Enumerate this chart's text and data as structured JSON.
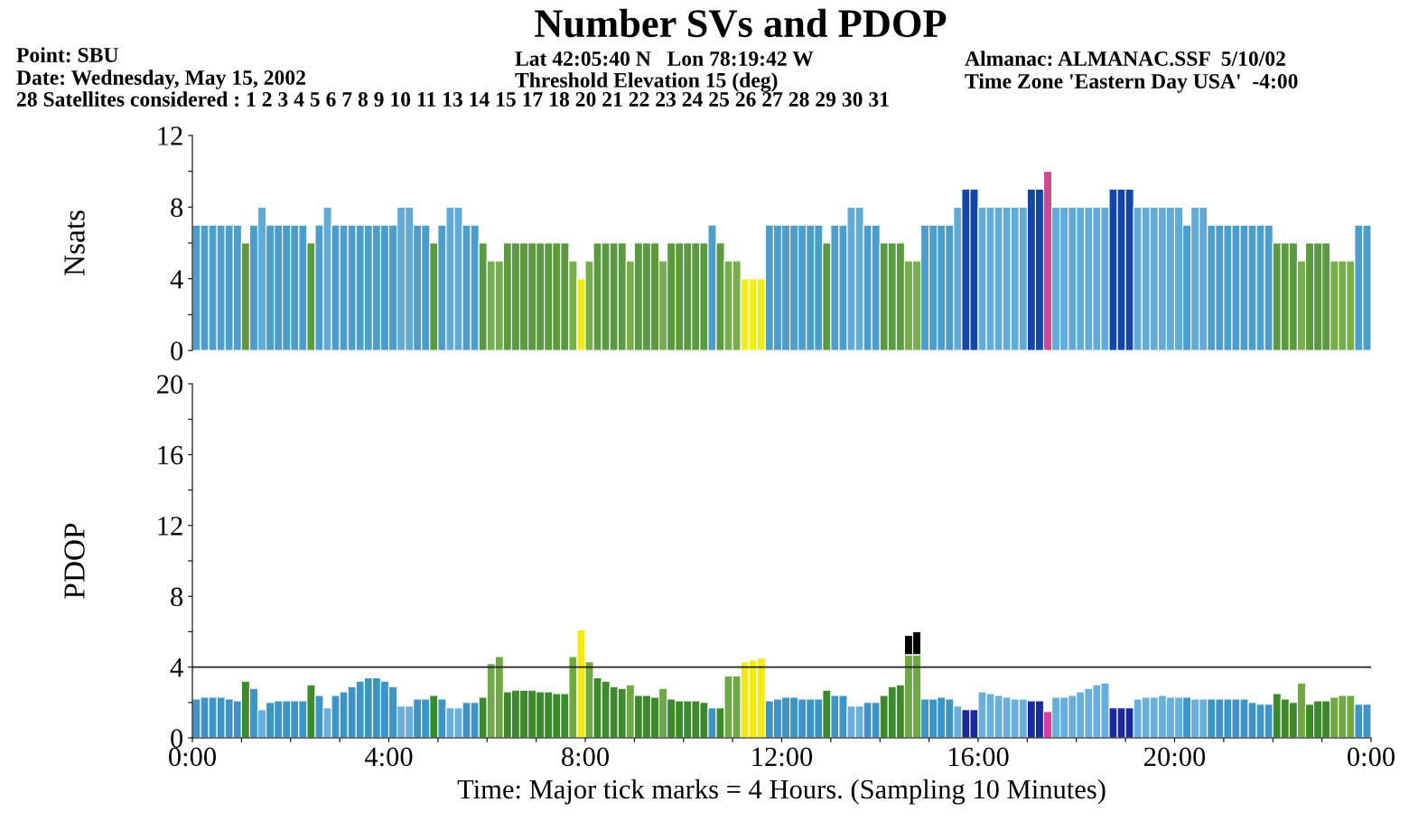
{
  "chart_data": [
    {
      "type": "bar",
      "title": "Number SVs and PDOP",
      "ylabel": "Nsats",
      "annotations": [
        "Point: SBU",
        "Date: Wednesday, May 15, 2002",
        "28 Satellites considered : 1 2 3 4 5 6 7 8 9 10 11 13 14 15 17 18 20 21 22 23 24 25 26 27 28 29 30 31",
        "Lat 42:05:40 N   Lon 78:19:42 W",
        "Threshold Elevation 15 (deg)",
        "Almanac: ALMANAC.SSF  5/10/02",
        "Time Zone 'Eastern Day USA'  -4:00"
      ],
      "x": [
        "2002-05-15T00:00",
        "2002-05-15T00:10",
        "2002-05-15T00:20",
        "2002-05-15T00:30",
        "2002-05-15T00:40",
        "2002-05-15T00:50",
        "2002-05-15T01:00",
        "2002-05-15T01:10",
        "2002-05-15T01:20",
        "2002-05-15T01:30",
        "2002-05-15T01:40",
        "2002-05-15T01:50",
        "2002-05-15T02:00",
        "2002-05-15T02:10",
        "2002-05-15T02:20",
        "2002-05-15T02:30",
        "2002-05-15T02:40",
        "2002-05-15T02:50",
        "2002-05-15T03:00",
        "2002-05-15T03:10",
        "2002-05-15T03:20",
        "2002-05-15T03:30",
        "2002-05-15T03:40",
        "2002-05-15T03:50",
        "2002-05-15T04:00",
        "2002-05-15T04:10",
        "2002-05-15T04:20",
        "2002-05-15T04:30",
        "2002-05-15T04:40",
        "2002-05-15T04:50",
        "2002-05-15T05:00",
        "2002-05-15T05:10",
        "2002-05-15T05:20",
        "2002-05-15T05:30",
        "2002-05-15T05:40",
        "2002-05-15T05:50",
        "2002-05-15T06:00",
        "2002-05-15T06:10",
        "2002-05-15T06:20",
        "2002-05-15T06:30",
        "2002-05-15T06:40",
        "2002-05-15T06:50",
        "2002-05-15T07:00",
        "2002-05-15T07:10",
        "2002-05-15T07:20",
        "2002-05-15T07:30",
        "2002-05-15T07:40",
        "2002-05-15T07:50",
        "2002-05-15T08:00",
        "2002-05-15T08:10",
        "2002-05-15T08:20",
        "2002-05-15T08:30",
        "2002-05-15T08:40",
        "2002-05-15T08:50",
        "2002-05-15T09:00",
        "2002-05-15T09:10",
        "2002-05-15T09:20",
        "2002-05-15T09:30",
        "2002-05-15T09:40",
        "2002-05-15T09:50",
        "2002-05-15T10:00",
        "2002-05-15T10:10",
        "2002-05-15T10:20",
        "2002-05-15T10:30",
        "2002-05-15T10:40",
        "2002-05-15T10:50",
        "2002-05-15T11:00",
        "2002-05-15T11:10",
        "2002-05-15T11:20",
        "2002-05-15T11:30",
        "2002-05-15T11:40",
        "2002-05-15T11:50",
        "2002-05-15T12:00",
        "2002-05-15T12:10",
        "2002-05-15T12:20",
        "2002-05-15T12:30",
        "2002-05-15T12:40",
        "2002-05-15T12:50",
        "2002-05-15T13:00",
        "2002-05-15T13:10",
        "2002-05-15T13:20",
        "2002-05-15T13:30",
        "2002-05-15T13:40",
        "2002-05-15T13:50",
        "2002-05-15T14:00",
        "2002-05-15T14:10",
        "2002-05-15T14:20",
        "2002-05-15T14:30",
        "2002-05-15T14:40",
        "2002-05-15T14:50",
        "2002-05-15T15:00",
        "2002-05-15T15:10",
        "2002-05-15T15:20",
        "2002-05-15T15:30",
        "2002-05-15T15:40",
        "2002-05-15T15:50",
        "2002-05-15T16:00",
        "2002-05-15T16:10",
        "2002-05-15T16:20",
        "2002-05-15T16:30",
        "2002-05-15T16:40",
        "2002-05-15T16:50",
        "2002-05-15T17:00",
        "2002-05-15T17:10",
        "2002-05-15T17:20",
        "2002-05-15T17:30",
        "2002-05-15T17:40",
        "2002-05-15T17:50",
        "2002-05-15T18:00",
        "2002-05-15T18:10",
        "2002-05-15T18:20",
        "2002-05-15T18:30",
        "2002-05-15T18:40",
        "2002-05-15T18:50",
        "2002-05-15T19:00",
        "2002-05-15T19:10",
        "2002-05-15T19:20",
        "2002-05-15T19:30",
        "2002-05-15T19:40",
        "2002-05-15T19:50",
        "2002-05-15T20:00",
        "2002-05-15T20:10",
        "2002-05-15T20:20",
        "2002-05-15T20:30",
        "2002-05-15T20:40",
        "2002-05-15T20:50",
        "2002-05-15T21:00",
        "2002-05-15T21:10",
        "2002-05-15T21:20",
        "2002-05-15T21:30",
        "2002-05-15T21:40",
        "2002-05-15T21:50",
        "2002-05-15T22:00",
        "2002-05-15T22:10",
        "2002-05-15T22:20",
        "2002-05-15T22:30",
        "2002-05-15T22:40",
        "2002-05-15T22:50",
        "2002-05-15T23:00",
        "2002-05-15T23:10",
        "2002-05-15T23:20",
        "2002-05-15T23:30",
        "2002-05-15T23:40",
        "2002-05-15T23:50"
      ],
      "values": [
        7,
        7,
        7,
        7,
        7,
        7,
        6,
        7,
        8,
        7,
        7,
        7,
        7,
        7,
        6,
        7,
        8,
        7,
        7,
        7,
        7,
        7,
        7,
        7,
        7,
        8,
        8,
        7,
        7,
        6,
        7,
        8,
        8,
        7,
        7,
        6,
        5,
        5,
        6,
        6,
        6,
        6,
        6,
        6,
        6,
        6,
        5,
        4,
        5,
        6,
        6,
        6,
        6,
        5,
        6,
        6,
        6,
        5,
        6,
        6,
        6,
        6,
        6,
        7,
        6,
        5,
        5,
        4,
        4,
        4,
        7,
        7,
        7,
        7,
        7,
        7,
        7,
        6,
        7,
        7,
        8,
        8,
        7,
        7,
        6,
        6,
        6,
        5,
        5,
        7,
        7,
        7,
        7,
        8,
        9,
        9,
        8,
        8,
        8,
        8,
        8,
        8,
        9,
        9,
        10,
        8,
        8,
        8,
        8,
        8,
        8,
        8,
        9,
        9,
        9,
        8,
        8,
        8,
        8,
        8,
        8,
        7,
        8,
        8,
        7,
        7,
        7,
        7,
        7,
        7,
        7,
        7,
        6,
        6,
        6,
        5,
        6,
        6,
        6,
        5,
        5,
        5,
        7,
        7
      ],
      "colors": [
        "#4d9dcb",
        "#4d9dcb",
        "#4d9dcb",
        "#4d9dcb",
        "#4d9dcb",
        "#4d9dcb",
        "#5b9a40",
        "#4d9dcb",
        "#62abd6",
        "#4d9dcb",
        "#4d9dcb",
        "#4d9dcb",
        "#4d9dcb",
        "#4d9dcb",
        "#5b9a40",
        "#4d9dcb",
        "#62abd6",
        "#4d9dcb",
        "#4d9dcb",
        "#4d9dcb",
        "#4d9dcb",
        "#4d9dcb",
        "#4d9dcb",
        "#4d9dcb",
        "#4d9dcb",
        "#62abd6",
        "#62abd6",
        "#4d9dcb",
        "#4d9dcb",
        "#5b9a40",
        "#4d9dcb",
        "#62abd6",
        "#62abd6",
        "#4d9dcb",
        "#4d9dcb",
        "#5b9a40",
        "#78ad4c",
        "#78ad4c",
        "#5b9a40",
        "#5b9a40",
        "#5b9a40",
        "#5b9a40",
        "#5b9a40",
        "#5b9a40",
        "#5b9a40",
        "#5b9a40",
        "#78ad4c",
        "#f2ec1a",
        "#78ad4c",
        "#5b9a40",
        "#5b9a40",
        "#5b9a40",
        "#5b9a40",
        "#78ad4c",
        "#5b9a40",
        "#5b9a40",
        "#5b9a40",
        "#78ad4c",
        "#5b9a40",
        "#5b9a40",
        "#5b9a40",
        "#5b9a40",
        "#5b9a40",
        "#4d9dcb",
        "#5b9a40",
        "#78ad4c",
        "#78ad4c",
        "#f2ec1a",
        "#f2ec1a",
        "#f2ec1a",
        "#4d9dcb",
        "#4d9dcb",
        "#4d9dcb",
        "#4d9dcb",
        "#4d9dcb",
        "#4d9dcb",
        "#4d9dcb",
        "#5b9a40",
        "#4d9dcb",
        "#4d9dcb",
        "#62abd6",
        "#62abd6",
        "#4d9dcb",
        "#4d9dcb",
        "#5b9a40",
        "#5b9a40",
        "#5b9a40",
        "#78ad4c",
        "#78ad4c",
        "#4d9dcb",
        "#4d9dcb",
        "#4d9dcb",
        "#4d9dcb",
        "#62abd6",
        "#1446aa",
        "#1446aa",
        "#62abd6",
        "#62abd6",
        "#62abd6",
        "#62abd6",
        "#62abd6",
        "#62abd6",
        "#1446aa",
        "#1446aa",
        "#cc4a8e",
        "#62abd6",
        "#62abd6",
        "#62abd6",
        "#62abd6",
        "#62abd6",
        "#62abd6",
        "#62abd6",
        "#1446aa",
        "#1446aa",
        "#1446aa",
        "#62abd6",
        "#62abd6",
        "#62abd6",
        "#62abd6",
        "#62abd6",
        "#62abd6",
        "#4d9dcb",
        "#62abd6",
        "#62abd6",
        "#4d9dcb",
        "#4d9dcb",
        "#4d9dcb",
        "#4d9dcb",
        "#4d9dcb",
        "#4d9dcb",
        "#4d9dcb",
        "#4d9dcb",
        "#5b9a40",
        "#5b9a40",
        "#5b9a40",
        "#78ad4c",
        "#5b9a40",
        "#5b9a40",
        "#5b9a40",
        "#78ad4c",
        "#78ad4c",
        "#78ad4c",
        "#4d9dcb",
        "#4d9dcb"
      ],
      "xlim": [
        "2002-05-15T00:00",
        "2002-05-16T00:00"
      ],
      "ylim": [
        0,
        12
      ],
      "yticks": [
        0,
        {
          "value": 2,
          "label": null
        },
        4,
        {
          "value": 6,
          "label": null
        },
        8,
        {
          "value": 10,
          "label": null
        },
        12
      ],
      "tick_labels": "y",
      "grid": false,
      "legend": false
    },
    {
      "type": "bar",
      "ylabel": "PDOP",
      "xlabel": "Time: Major tick marks = 4 Hours. (Sampling 10 Minutes)",
      "stacked": true,
      "x": [
        "2002-05-15T00:00",
        "2002-05-15T00:10",
        "2002-05-15T00:20",
        "2002-05-15T00:30",
        "2002-05-15T00:40",
        "2002-05-15T00:50",
        "2002-05-15T01:00",
        "2002-05-15T01:10",
        "2002-05-15T01:20",
        "2002-05-15T01:30",
        "2002-05-15T01:40",
        "2002-05-15T01:50",
        "2002-05-15T02:00",
        "2002-05-15T02:10",
        "2002-05-15T02:20",
        "2002-05-15T02:30",
        "2002-05-15T02:40",
        "2002-05-15T02:50",
        "2002-05-15T03:00",
        "2002-05-15T03:10",
        "2002-05-15T03:20",
        "2002-05-15T03:30",
        "2002-05-15T03:40",
        "2002-05-15T03:50",
        "2002-05-15T04:00",
        "2002-05-15T04:10",
        "2002-05-15T04:20",
        "2002-05-15T04:30",
        "2002-05-15T04:40",
        "2002-05-15T04:50",
        "2002-05-15T05:00",
        "2002-05-15T05:10",
        "2002-05-15T05:20",
        "2002-05-15T05:30",
        "2002-05-15T05:40",
        "2002-05-15T05:50",
        "2002-05-15T06:00",
        "2002-05-15T06:10",
        "2002-05-15T06:20",
        "2002-05-15T06:30",
        "2002-05-15T06:40",
        "2002-05-15T06:50",
        "2002-05-15T07:00",
        "2002-05-15T07:10",
        "2002-05-15T07:20",
        "2002-05-15T07:30",
        "2002-05-15T07:40",
        "2002-05-15T07:50",
        "2002-05-15T08:00",
        "2002-05-15T08:10",
        "2002-05-15T08:20",
        "2002-05-15T08:30",
        "2002-05-15T08:40",
        "2002-05-15T08:50",
        "2002-05-15T09:00",
        "2002-05-15T09:10",
        "2002-05-15T09:20",
        "2002-05-15T09:30",
        "2002-05-15T09:40",
        "2002-05-15T09:50",
        "2002-05-15T10:00",
        "2002-05-15T10:10",
        "2002-05-15T10:20",
        "2002-05-15T10:30",
        "2002-05-15T10:40",
        "2002-05-15T10:50",
        "2002-05-15T11:00",
        "2002-05-15T11:10",
        "2002-05-15T11:20",
        "2002-05-15T11:30",
        "2002-05-15T11:40",
        "2002-05-15T11:50",
        "2002-05-15T12:00",
        "2002-05-15T12:10",
        "2002-05-15T12:20",
        "2002-05-15T12:30",
        "2002-05-15T12:40",
        "2002-05-15T12:50",
        "2002-05-15T13:00",
        "2002-05-15T13:10",
        "2002-05-15T13:20",
        "2002-05-15T13:30",
        "2002-05-15T13:40",
        "2002-05-15T13:50",
        "2002-05-15T14:00",
        "2002-05-15T14:10",
        "2002-05-15T14:20",
        "2002-05-15T14:30",
        "2002-05-15T14:40",
        "2002-05-15T14:50",
        "2002-05-15T15:00",
        "2002-05-15T15:10",
        "2002-05-15T15:20",
        "2002-05-15T15:30",
        "2002-05-15T15:40",
        "2002-05-15T15:50",
        "2002-05-15T16:00",
        "2002-05-15T16:10",
        "2002-05-15T16:20",
        "2002-05-15T16:30",
        "2002-05-15T16:40",
        "2002-05-15T16:50",
        "2002-05-15T17:00",
        "2002-05-15T17:10",
        "2002-05-15T17:20",
        "2002-05-15T17:30",
        "2002-05-15T17:40",
        "2002-05-15T17:50",
        "2002-05-15T18:00",
        "2002-05-15T18:10",
        "2002-05-15T18:20",
        "2002-05-15T18:30",
        "2002-05-15T18:40",
        "2002-05-15T18:50",
        "2002-05-15T19:00",
        "2002-05-15T19:10",
        "2002-05-15T19:20",
        "2002-05-15T19:30",
        "2002-05-15T19:40",
        "2002-05-15T19:50",
        "2002-05-15T20:00",
        "2002-05-15T20:10",
        "2002-05-15T20:20",
        "2002-05-15T20:30",
        "2002-05-15T20:40",
        "2002-05-15T20:50",
        "2002-05-15T21:00",
        "2002-05-15T21:10",
        "2002-05-15T21:20",
        "2002-05-15T21:30",
        "2002-05-15T21:40",
        "2002-05-15T21:50",
        "2002-05-15T22:00",
        "2002-05-15T22:10",
        "2002-05-15T22:20",
        "2002-05-15T22:30",
        "2002-05-15T22:40",
        "2002-05-15T22:50",
        "2002-05-15T23:00",
        "2002-05-15T23:10",
        "2002-05-15T23:20",
        "2002-05-15T23:30",
        "2002-05-15T23:40",
        "2002-05-15T23:50"
      ],
      "series": [
        {
          "values": [
            2.2,
            2.3,
            2.3,
            2.3,
            2.2,
            2.1,
            3.2,
            2.8,
            1.6,
            2.0,
            2.1,
            2.1,
            2.1,
            2.1,
            3.0,
            2.4,
            1.7,
            2.4,
            2.6,
            2.9,
            3.2,
            3.4,
            3.4,
            3.2,
            2.9,
            1.8,
            1.8,
            2.2,
            2.2,
            2.4,
            2.2,
            1.7,
            1.7,
            2.0,
            2.0,
            2.3,
            4.2,
            4.6,
            2.6,
            2.7,
            2.7,
            2.7,
            2.6,
            2.6,
            2.5,
            2.5,
            4.6,
            6.1,
            4.3,
            3.4,
            3.2,
            2.9,
            2.8,
            3.0,
            2.4,
            2.4,
            2.3,
            2.8,
            2.2,
            2.1,
            2.1,
            2.1,
            2.0,
            1.7,
            1.7,
            3.5,
            3.5,
            4.3,
            4.4,
            4.5,
            2.1,
            2.2,
            2.3,
            2.3,
            2.2,
            2.2,
            2.2,
            2.7,
            2.4,
            2.4,
            1.8,
            1.8,
            2.0,
            2.0,
            2.4,
            2.9,
            3.0,
            4.7,
            4.7,
            2.2,
            2.2,
            2.3,
            2.2,
            1.8,
            1.6,
            1.6,
            2.6,
            2.5,
            2.4,
            2.3,
            2.2,
            2.2,
            2.1,
            2.1,
            1.5,
            2.3,
            2.3,
            2.4,
            2.6,
            2.8,
            3.0,
            3.1,
            1.7,
            1.7,
            1.7,
            2.2,
            2.3,
            2.3,
            2.4,
            2.3,
            2.3,
            2.3,
            2.2,
            2.2,
            2.2,
            2.2,
            2.2,
            2.2,
            2.2,
            2.0,
            1.9,
            1.9,
            2.5,
            2.2,
            2.0,
            3.1,
            1.9,
            2.1,
            2.1,
            2.3,
            2.4,
            2.4,
            1.9,
            1.9
          ],
          "colors": [
            "#3f94c6",
            "#3f94c6",
            "#3f94c6",
            "#3f94c6",
            "#3f94c6",
            "#3f94c6",
            "#3d8a2c",
            "#3f94c6",
            "#6aaedb",
            "#3f94c6",
            "#3f94c6",
            "#3f94c6",
            "#3f94c6",
            "#3f94c6",
            "#3d8a2c",
            "#3f94c6",
            "#6aaedb",
            "#3f94c6",
            "#3f94c6",
            "#3f94c6",
            "#3f94c6",
            "#3f94c6",
            "#3f94c6",
            "#3f94c6",
            "#3f94c6",
            "#6aaedb",
            "#6aaedb",
            "#3f94c6",
            "#3f94c6",
            "#3d8a2c",
            "#3f94c6",
            "#6aaedb",
            "#6aaedb",
            "#3f94c6",
            "#3f94c6",
            "#3d8a2c",
            "#6fa844",
            "#6fa844",
            "#3d8a2c",
            "#3d8a2c",
            "#3d8a2c",
            "#3d8a2c",
            "#3d8a2c",
            "#3d8a2c",
            "#3d8a2c",
            "#3d8a2c",
            "#6fa844",
            "#f4ea12",
            "#6fa844",
            "#3d8a2c",
            "#3d8a2c",
            "#3d8a2c",
            "#3d8a2c",
            "#6fa844",
            "#3d8a2c",
            "#3d8a2c",
            "#3d8a2c",
            "#6fa844",
            "#3d8a2c",
            "#3d8a2c",
            "#3d8a2c",
            "#3d8a2c",
            "#3d8a2c",
            "#3f94c6",
            "#3d8a2c",
            "#6fa844",
            "#6fa844",
            "#f4ea12",
            "#f4ea12",
            "#f4ea12",
            "#3f94c6",
            "#3f94c6",
            "#3f94c6",
            "#3f94c6",
            "#3f94c6",
            "#3f94c6",
            "#3f94c6",
            "#3d8a2c",
            "#3f94c6",
            "#3f94c6",
            "#6aaedb",
            "#6aaedb",
            "#3f94c6",
            "#3f94c6",
            "#3d8a2c",
            "#3d8a2c",
            "#3d8a2c",
            "#6fa844",
            "#6fa844",
            "#3f94c6",
            "#3f94c6",
            "#3f94c6",
            "#3f94c6",
            "#6aaedb",
            "#1a2a9c",
            "#1a2a9c",
            "#6aaedb",
            "#6aaedb",
            "#6aaedb",
            "#6aaedb",
            "#6aaedb",
            "#6aaedb",
            "#1a2a9c",
            "#1a2a9c",
            "#d8409a",
            "#6aaedb",
            "#6aaedb",
            "#6aaedb",
            "#6aaedb",
            "#6aaedb",
            "#6aaedb",
            "#6aaedb",
            "#1a2a9c",
            "#1a2a9c",
            "#1a2a9c",
            "#6aaedb",
            "#6aaedb",
            "#6aaedb",
            "#6aaedb",
            "#6aaedb",
            "#6aaedb",
            "#3f94c6",
            "#6aaedb",
            "#6aaedb",
            "#3f94c6",
            "#3f94c6",
            "#3f94c6",
            "#3f94c6",
            "#3f94c6",
            "#3f94c6",
            "#3f94c6",
            "#3f94c6",
            "#3d8a2c",
            "#3d8a2c",
            "#3d8a2c",
            "#6fa844",
            "#3d8a2c",
            "#3d8a2c",
            "#3d8a2c",
            "#6fa844",
            "#6fa844",
            "#6fa844",
            "#3f94c6",
            "#3f94c6"
          ]
        },
        {
          "color": "#000000",
          "values": [
            null,
            null,
            null,
            null,
            null,
            null,
            null,
            null,
            null,
            null,
            null,
            null,
            null,
            null,
            null,
            null,
            null,
            null,
            null,
            null,
            null,
            null,
            null,
            null,
            null,
            null,
            null,
            null,
            null,
            null,
            null,
            null,
            null,
            null,
            null,
            null,
            null,
            null,
            null,
            null,
            null,
            null,
            null,
            null,
            null,
            null,
            null,
            null,
            null,
            null,
            null,
            null,
            null,
            null,
            null,
            null,
            null,
            null,
            null,
            null,
            null,
            null,
            null,
            null,
            null,
            null,
            null,
            null,
            null,
            null,
            null,
            null,
            null,
            null,
            null,
            null,
            null,
            null,
            null,
            null,
            null,
            null,
            null,
            null,
            null,
            null,
            null,
            1.1,
            1.3,
            null,
            null,
            null,
            null,
            null,
            null,
            null,
            null,
            null,
            null,
            null,
            null,
            null,
            null,
            null,
            null,
            null,
            null,
            null,
            null,
            null,
            null,
            null,
            null,
            null,
            null,
            null,
            null,
            null,
            null,
            null,
            null,
            null,
            null,
            null,
            null,
            null,
            null,
            null,
            null,
            null,
            null,
            null,
            null,
            null,
            null,
            null,
            null,
            null,
            null,
            null,
            null,
            null,
            null,
            null
          ]
        }
      ],
      "ref_lines": [
        {
          "axis": "y",
          "value": 4,
          "color": "#222222"
        }
      ],
      "xlim": [
        "2002-05-15T00:00",
        "2002-05-16T00:00"
      ],
      "ylim": [
        0,
        20
      ],
      "xticks": [
        {
          "value": "2002-05-15T00:00",
          "label": "0:00"
        },
        {
          "value": "2002-05-15T01:00",
          "label": null
        },
        {
          "value": "2002-05-15T02:00",
          "label": null
        },
        {
          "value": "2002-05-15T03:00",
          "label": null
        },
        {
          "value": "2002-05-15T04:00",
          "label": "4:00"
        },
        {
          "value": "2002-05-15T05:00",
          "label": null
        },
        {
          "value": "2002-05-15T06:00",
          "label": null
        },
        {
          "value": "2002-05-15T07:00",
          "label": null
        },
        {
          "value": "2002-05-15T08:00",
          "label": "8:00"
        },
        {
          "value": "2002-05-15T09:00",
          "label": null
        },
        {
          "value": "2002-05-15T10:00",
          "label": null
        },
        {
          "value": "2002-05-15T11:00",
          "label": null
        },
        {
          "value": "2002-05-15T12:00",
          "label": "12:00"
        },
        {
          "value": "2002-05-15T13:00",
          "label": null
        },
        {
          "value": "2002-05-15T14:00",
          "label": null
        },
        {
          "value": "2002-05-15T15:00",
          "label": null
        },
        {
          "value": "2002-05-15T16:00",
          "label": "16:00"
        },
        {
          "value": "2002-05-15T17:00",
          "label": null
        },
        {
          "value": "2002-05-15T18:00",
          "label": null
        },
        {
          "value": "2002-05-15T19:00",
          "label": null
        },
        {
          "value": "2002-05-15T20:00",
          "label": "20:00"
        },
        {
          "value": "2002-05-15T21:00",
          "label": null
        },
        {
          "value": "2002-05-15T22:00",
          "label": null
        },
        {
          "value": "2002-05-15T23:00",
          "label": null
        },
        {
          "value": "2002-05-16T00:00",
          "label": "0:00"
        }
      ],
      "yticks": [
        0,
        {
          "value": 2,
          "label": null
        },
        4,
        {
          "value": 6,
          "label": null
        },
        8,
        {
          "value": 10,
          "label": null
        },
        12,
        {
          "value": 14,
          "label": null
        },
        16,
        {
          "value": 18,
          "label": null
        },
        20
      ],
      "grid": false,
      "legend": false
    }
  ]
}
